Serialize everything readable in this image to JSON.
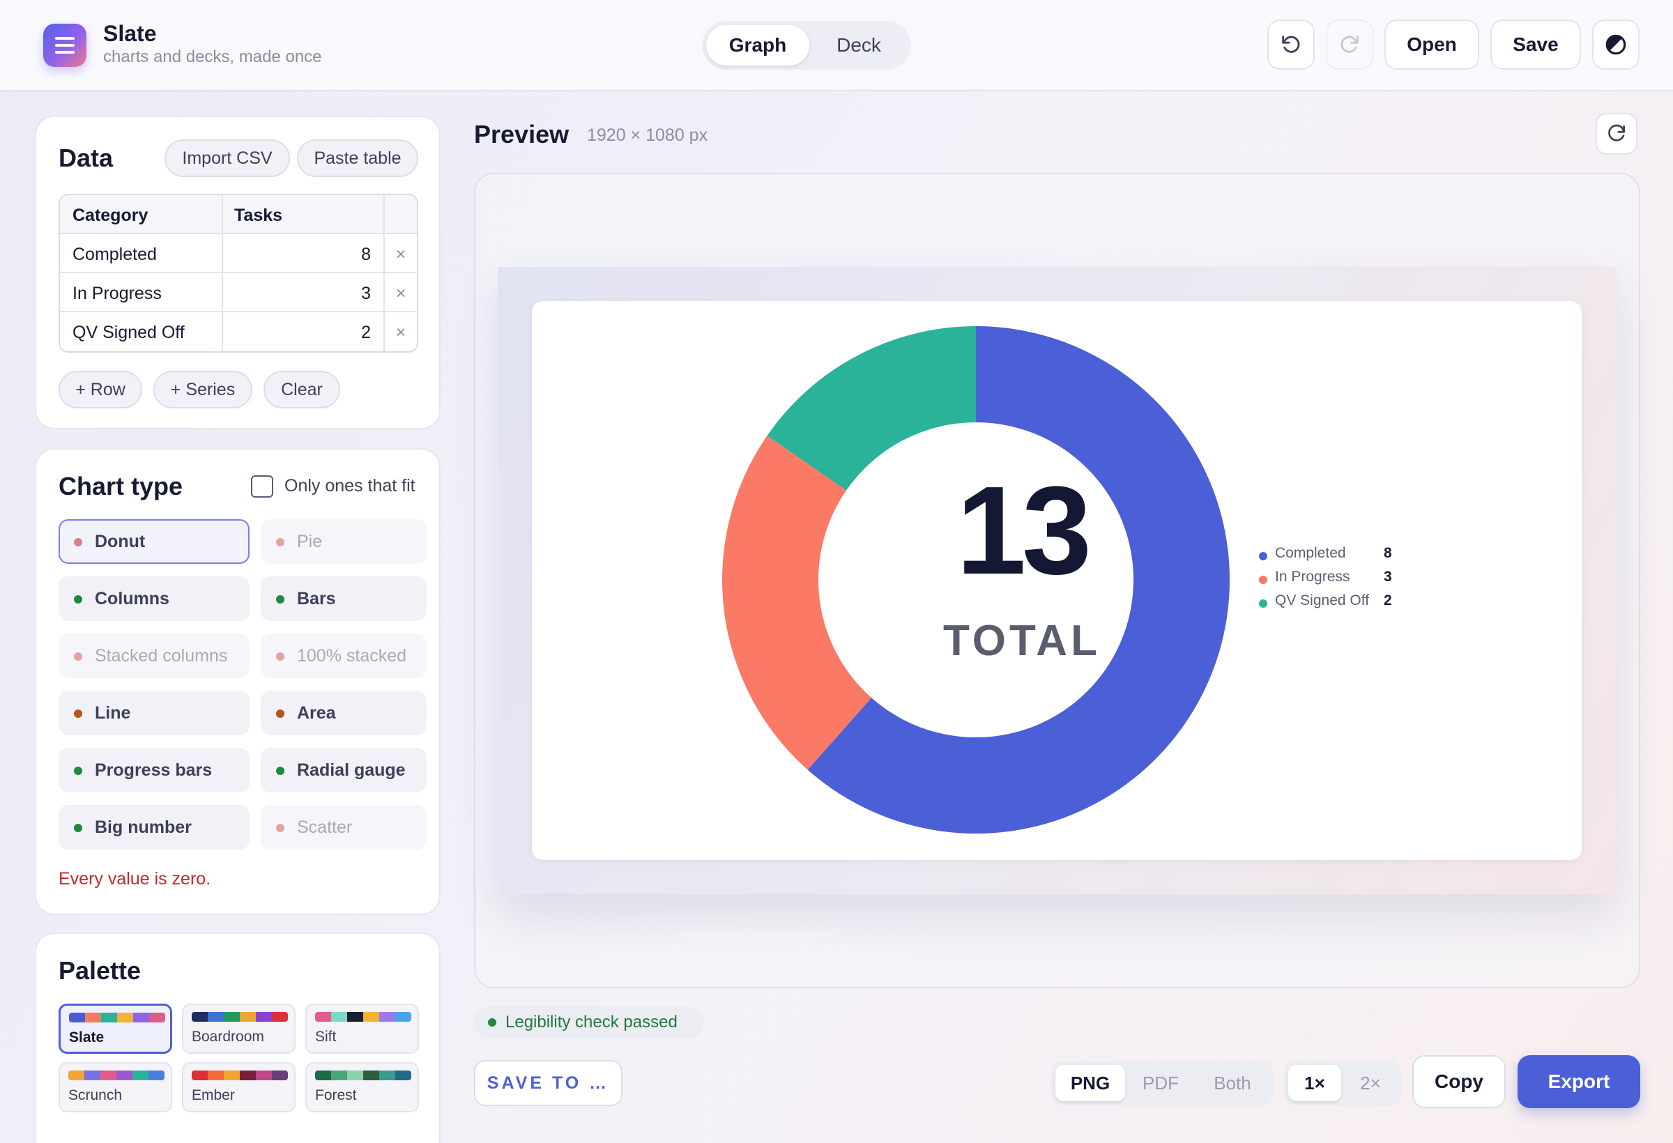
{
  "app": {
    "title": "Slate",
    "subtitle": "charts and decks, made once"
  },
  "modes": {
    "active": "Graph",
    "inactive": "Deck"
  },
  "toolbar": {
    "open_label": "Open",
    "save_label": "Save"
  },
  "data_panel": {
    "title": "Data",
    "import_label": "Import CSV",
    "paste_label": "Paste table",
    "columns": [
      "Category",
      "Tasks"
    ],
    "rows": [
      {
        "category": "Completed",
        "value": "8"
      },
      {
        "category": "In Progress",
        "value": "3"
      },
      {
        "category": "QV Signed Off",
        "value": "2"
      }
    ],
    "remove_glyph": "×",
    "add_row_label": "+ Row",
    "add_series_label": "+ Series",
    "clear_label": "Clear"
  },
  "chart_type_panel": {
    "title": "Chart type",
    "filter_label": "Only ones that fit",
    "types": [
      {
        "label": "Donut",
        "status": "selected",
        "dot_color": "#d98282"
      },
      {
        "label": "Pie",
        "status": "unavailable",
        "dot_color": "#e2a3a3"
      },
      {
        "label": "Columns",
        "status": "fits",
        "dot_color": "#1e8a3e"
      },
      {
        "label": "Bars",
        "status": "fits",
        "dot_color": "#1e8a3e"
      },
      {
        "label": "Stacked columns",
        "status": "unavailable",
        "dot_color": "#e2a3a3"
      },
      {
        "label": "100% stacked",
        "status": "unavailable",
        "dot_color": "#e2a3a3"
      },
      {
        "label": "Line",
        "status": "warning",
        "dot_color": "#b5541b"
      },
      {
        "label": "Area",
        "status": "warning",
        "dot_color": "#b5541b"
      },
      {
        "label": "Progress bars",
        "status": "fits",
        "dot_color": "#1e8a3e"
      },
      {
        "label": "Radial gauge",
        "status": "fits",
        "dot_color": "#1e8a3e"
      },
      {
        "label": "Big number",
        "status": "fits",
        "dot_color": "#1e8a3e"
      },
      {
        "label": "Scatter",
        "status": "unavailable",
        "dot_color": "#e2a3a3"
      }
    ],
    "error_text": "Every value is zero."
  },
  "palette_panel": {
    "title": "Palette",
    "palettes": [
      {
        "name": "Slate",
        "colors": [
          "#4b5bd6",
          "#f47a66",
          "#2bb39a",
          "#f2b233",
          "#8f63e8",
          "#e05c8a"
        ]
      },
      {
        "name": "Boardroom",
        "colors": [
          "#1d2f5e",
          "#3e6fd8",
          "#1e9c5a",
          "#f2a532",
          "#8a3fd1",
          "#d9303a"
        ]
      },
      {
        "name": "Sift",
        "colors": [
          "#e45b8f",
          "#7ed9c4",
          "#1a1d33",
          "#f2b233",
          "#9b7be8",
          "#4aa3e8"
        ]
      },
      {
        "name": "Scrunch",
        "colors": [
          "#f2a532",
          "#7b6fe8",
          "#e05c8a",
          "#9b59d0",
          "#2bb39a",
          "#4a7fe0"
        ]
      },
      {
        "name": "Ember",
        "colors": [
          "#d9303a",
          "#f26b3a",
          "#f2a532",
          "#7a1f3a",
          "#c2468c",
          "#6b3d7a"
        ]
      },
      {
        "name": "Forest",
        "colors": [
          "#1e6b4a",
          "#48a878",
          "#8fd1a8",
          "#2e5e3e",
          "#3b9b8c",
          "#1f6b8a"
        ]
      }
    ]
  },
  "preview": {
    "title": "Preview",
    "size_text": "1920 × 1080 px",
    "legibility_text": "Legibility check passed"
  },
  "chart_data": {
    "type": "donut",
    "categories": [
      "Completed",
      "In Progress",
      "QV Signed Off"
    ],
    "values": [
      8,
      3,
      2
    ],
    "colors": [
      "#4b5fd6",
      "#fa7a66",
      "#2bb39a"
    ],
    "center_value": "13",
    "center_label": "TOTAL",
    "legend_position": "right"
  },
  "export": {
    "save_to_label": "SAVE TO …",
    "formats": [
      "PNG",
      "PDF",
      "Both"
    ],
    "active_format": "PNG",
    "scales": [
      "1×",
      "2×"
    ],
    "active_scale": "1×",
    "copy_label": "Copy",
    "export_label": "Export"
  }
}
